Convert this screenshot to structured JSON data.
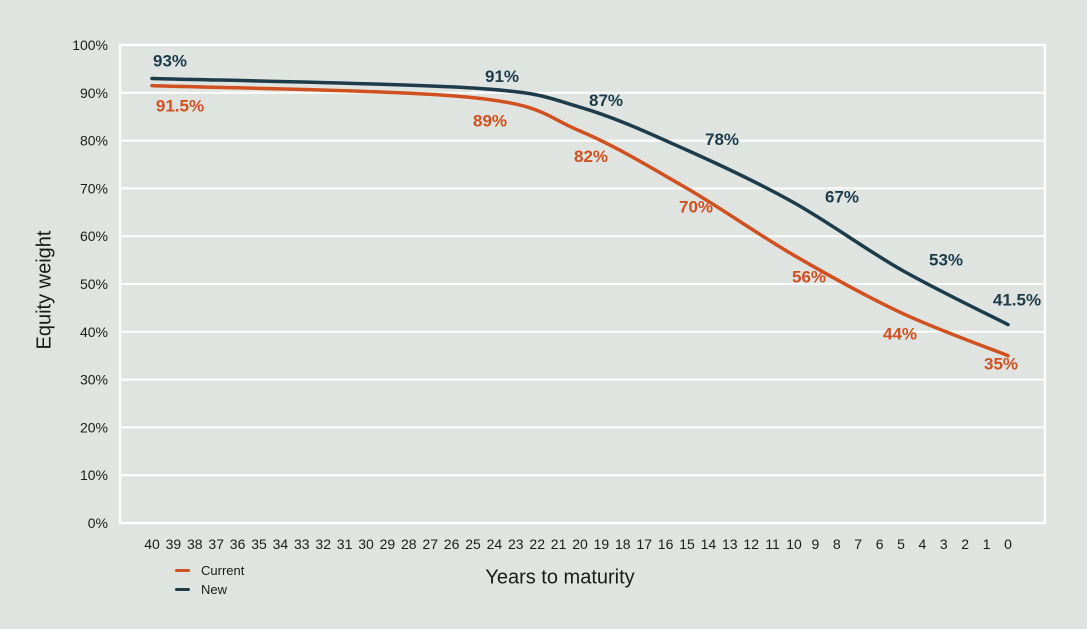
{
  "colors": {
    "background": "#dfe4e0",
    "grid": "#ffffff",
    "current": "#d1501f",
    "new": "#1d3b4a",
    "text": "#1b1b1b"
  },
  "chart_data": {
    "type": "line",
    "xlabel": "Years to maturity",
    "ylabel": "Equity weight",
    "x_points": [
      40,
      25,
      20,
      15,
      10,
      5,
      0
    ],
    "series": [
      {
        "name": "Current",
        "color": "#d1501f",
        "values": [
          91.5,
          89,
          82,
          70,
          56,
          44,
          35
        ],
        "point_labels": [
          "91.5%",
          "89%",
          "82%",
          "70%",
          "56%",
          "44%",
          "35%"
        ]
      },
      {
        "name": "New",
        "color": "#1d3b4a",
        "values": [
          93,
          91,
          87,
          78,
          67,
          53,
          41.5
        ],
        "point_labels": [
          "93%",
          "91%",
          "87%",
          "78%",
          "67%",
          "53%",
          "41.5%"
        ]
      }
    ],
    "x_ticks": [
      "40",
      "39",
      "38",
      "37",
      "36",
      "35",
      "34",
      "33",
      "32",
      "31",
      "30",
      "29",
      "28",
      "27",
      "26",
      "25",
      "24",
      "23",
      "22",
      "21",
      "20",
      "19",
      "18",
      "17",
      "16",
      "15",
      "14",
      "13",
      "12",
      "11",
      "10",
      "9",
      "8",
      "7",
      "6",
      "5",
      "4",
      "3",
      "2",
      "1",
      "0"
    ],
    "y_ticks": [
      "0%",
      "10%",
      "20%",
      "30%",
      "40%",
      "50%",
      "60%",
      "70%",
      "80%",
      "90%",
      "100%"
    ],
    "ylim": [
      0,
      100
    ],
    "xlim": [
      40,
      0
    ],
    "grid": "horizontal",
    "legend_position": "bottom-left"
  }
}
